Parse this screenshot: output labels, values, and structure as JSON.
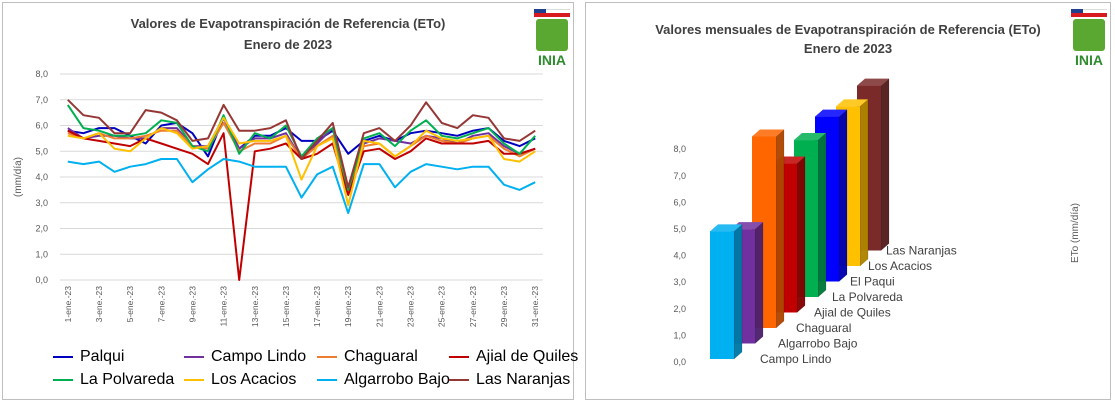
{
  "left": {
    "title_line1": "Valores  de  Evapotranspiración de Referencia (ETo)",
    "title_line2": "Enero de 2023",
    "logo_text": "INIA"
  },
  "right": {
    "title_line1": "Valores mensuales de  Evapotranspiración de Referencia  (ETo)",
    "title_line2": "Enero de 2023",
    "logo_text": "INIA"
  },
  "chart_data": [
    {
      "type": "line",
      "title": "Valores  de  Evapotranspiración de Referencia (ETo) Enero de 2023",
      "ylabel": "(mm/día)",
      "ylim": [
        0,
        8
      ],
      "yticks": [
        "0,0",
        "1,0",
        "2,0",
        "3,0",
        "4,0",
        "5,0",
        "6,0",
        "7,0",
        "8,0"
      ],
      "grid": true,
      "legend_position": "bottom",
      "categories": [
        "1-ene.-23",
        "2-ene.-23",
        "3-ene.-23",
        "4-ene.-23",
        "5-ene.-23",
        "6-ene.-23",
        "7-ene.-23",
        "8-ene.-23",
        "9-ene.-23",
        "10-ene.-23",
        "11-ene.-23",
        "12-ene.-23",
        "13-ene.-23",
        "14-ene.-23",
        "15-ene.-23",
        "16-ene.-23",
        "17-ene.-23",
        "18-ene.-23",
        "19-ene.-23",
        "20-ene.-23",
        "21-ene.-23",
        "22-ene.-23",
        "23-ene.-23",
        "24-ene.-23",
        "25-ene.-23",
        "26-ene.-23",
        "27-ene.-23",
        "28-ene.-23",
        "29-ene.-23",
        "30-ene.-23",
        "31-ene.-23"
      ],
      "xticks": [
        "1-ene.-23",
        "3-ene.-23",
        "5-ene.-23",
        "7-ene.-23",
        "9-ene.-23",
        "11-ene.-23",
        "13-ene.-23",
        "15-ene.-23",
        "17-ene.-23",
        "19-ene.-23",
        "21-ene.-23",
        "23-ene.-23",
        "25-ene.-23",
        "27-ene.-23",
        "29-ene.-23",
        "31-ene.-23"
      ],
      "series": [
        {
          "name": "Palqui",
          "color": "#0000c0",
          "values": [
            5.8,
            5.7,
            5.9,
            5.9,
            5.6,
            5.3,
            6.0,
            6.1,
            5.7,
            4.8,
            6.3,
            5.1,
            5.6,
            5.6,
            5.9,
            5.4,
            5.4,
            5.8,
            4.9,
            5.4,
            5.6,
            5.4,
            5.7,
            5.8,
            5.7,
            5.6,
            5.8,
            5.9,
            5.4,
            5.2,
            5.5
          ]
        },
        {
          "name": "Campo Lindo",
          "color": "#7030a0",
          "values": [
            5.9,
            5.5,
            5.6,
            5.6,
            5.5,
            5.5,
            5.9,
            5.9,
            5.2,
            5.2,
            6.3,
            5.1,
            5.5,
            5.5,
            5.7,
            4.7,
            5.3,
            5.9,
            3.5,
            5.3,
            5.5,
            5.4,
            5.3,
            5.6,
            5.5,
            5.3,
            5.6,
            5.7,
            5.2,
            4.9,
            5.1
          ]
        },
        {
          "name": "Chaguaral",
          "color": "#ed7d31",
          "values": [
            5.7,
            5.5,
            5.7,
            5.5,
            5.5,
            5.6,
            5.8,
            5.8,
            5.2,
            5.1,
            6.1,
            5.0,
            5.3,
            5.3,
            5.6,
            4.7,
            5.2,
            5.6,
            3.4,
            5.2,
            5.3,
            4.8,
            5.2,
            5.6,
            5.4,
            5.3,
            5.5,
            5.6,
            5.1,
            4.8,
            5.1
          ]
        },
        {
          "name": "Ajial de Quiles",
          "color": "#c00000",
          "values": [
            5.8,
            5.5,
            5.4,
            5.3,
            5.2,
            5.5,
            5.3,
            5.1,
            4.9,
            4.5,
            5.7,
            0.0,
            5.0,
            5.1,
            5.3,
            4.7,
            4.9,
            5.3,
            3.3,
            5.0,
            5.1,
            4.7,
            5.0,
            5.5,
            5.3,
            5.3,
            5.3,
            5.4,
            4.9,
            4.9,
            5.1
          ]
        },
        {
          "name": "La Polvareda",
          "color": "#00b050",
          "values": [
            6.8,
            5.9,
            5.8,
            5.6,
            5.6,
            5.7,
            6.2,
            6.1,
            5.2,
            5.0,
            6.4,
            4.9,
            5.7,
            5.5,
            6.0,
            4.8,
            5.5,
            5.9,
            3.5,
            5.5,
            5.7,
            5.2,
            5.8,
            6.2,
            5.6,
            5.5,
            5.7,
            5.9,
            5.3,
            4.9,
            5.6
          ]
        },
        {
          "name": "Los Acacios",
          "color": "#ffc000",
          "values": [
            5.6,
            5.5,
            5.7,
            5.1,
            5.0,
            5.5,
            5.9,
            5.7,
            5.1,
            5.2,
            6.3,
            5.3,
            5.4,
            5.4,
            5.6,
            3.9,
            5.2,
            5.5,
            2.9,
            5.4,
            5.3,
            4.8,
            5.2,
            5.8,
            5.5,
            5.4,
            5.5,
            5.6,
            4.7,
            4.6,
            5.0
          ]
        },
        {
          "name": "Algarrobo Bajo",
          "color": "#00b0f0",
          "values": [
            4.6,
            4.5,
            4.6,
            4.2,
            4.4,
            4.5,
            4.7,
            4.7,
            3.8,
            4.3,
            4.7,
            4.6,
            4.4,
            4.4,
            4.4,
            3.2,
            4.1,
            4.4,
            2.6,
            4.5,
            4.5,
            3.6,
            4.2,
            4.5,
            4.4,
            4.3,
            4.4,
            4.4,
            3.7,
            3.5,
            3.8
          ]
        },
        {
          "name": "Las Naranjas",
          "color": "#953735",
          "values": [
            7.0,
            6.4,
            6.3,
            5.7,
            5.7,
            6.6,
            6.5,
            6.2,
            5.4,
            5.5,
            6.8,
            5.8,
            5.8,
            5.9,
            6.2,
            4.7,
            5.4,
            6.1,
            3.6,
            5.7,
            5.9,
            5.4,
            6.0,
            6.9,
            6.1,
            5.9,
            6.4,
            6.3,
            5.5,
            5.4,
            5.8
          ]
        }
      ]
    },
    {
      "type": "bar",
      "subtype": "3d-bar",
      "title": "Valores mensuales de  Evapotranspiración de Referencia  (ETo) Enero de 2023",
      "ylabel": "ETo (mm/día)",
      "ylim": [
        0,
        8
      ],
      "yticks": [
        "0,0",
        "1,0",
        "2,0",
        "3,0",
        "4,0",
        "5,0",
        "6,0",
        "7,0",
        "8,0"
      ],
      "grid": false,
      "categories": [
        "Campo Lindo",
        "Algarrobo Bajo",
        "Chaguaral",
        "Ajial de Quiles",
        "La Polvareda",
        "El Paqui",
        "Los Acacios",
        "Las Naranjas"
      ],
      "values": [
        4.8,
        4.3,
        7.2,
        5.6,
        5.9,
        6.2,
        6.0,
        6.2
      ],
      "colors": [
        "#00b0f0",
        "#7030a0",
        "#ff6600",
        "#c00000",
        "#00b050",
        "#0000ff",
        "#ffc000",
        "#7b2a2a"
      ]
    }
  ]
}
